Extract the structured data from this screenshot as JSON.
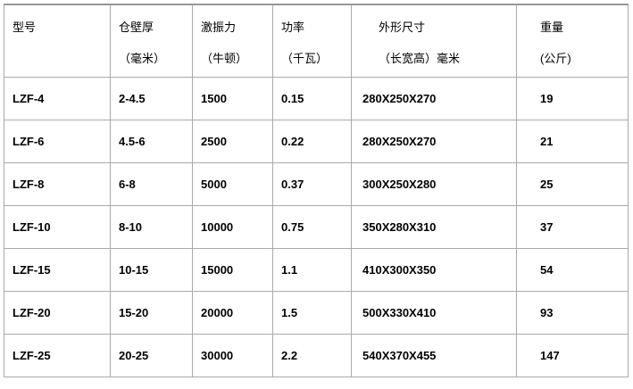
{
  "table": {
    "title": "product-specification-table",
    "headers": [
      {
        "line1": "型号",
        "line2": ""
      },
      {
        "line1": "仓壁厚",
        "line2": "（毫米）"
      },
      {
        "line1": "激振力",
        "line2": "（牛顿）"
      },
      {
        "line1": "功率",
        "line2": "（千瓦）"
      },
      {
        "line1": "外形尺寸",
        "line2": "（长宽高）毫米"
      },
      {
        "line1": "重量",
        "line2": "(公斤)"
      }
    ],
    "rows": [
      [
        "LZF-4",
        "2-4.5",
        "1500",
        "0.15",
        "280X250X270",
        "19"
      ],
      [
        "LZF-6",
        "4.5-6",
        "2500",
        "0.22",
        "280X250X270",
        "21"
      ],
      [
        "LZF-8",
        "6-8",
        "5000",
        "0.37",
        "300X250X280",
        "25"
      ],
      [
        "LZF-10",
        "8-10",
        "10000",
        "0.75",
        "350X280X310",
        "37"
      ],
      [
        "LZF-15",
        "10-15",
        "15000",
        "1.1",
        "410X300X350",
        "54"
      ],
      [
        "LZF-20",
        "15-20",
        "20000",
        "1.5",
        "500X330X410",
        "93"
      ],
      [
        "LZF-25",
        "20-25",
        "30000",
        "2.2",
        "540X370X455",
        "147"
      ]
    ],
    "colors": {
      "border": "#aaaaaa",
      "border_top": "#979797",
      "text": "#000000",
      "background": "#ffffff"
    }
  }
}
